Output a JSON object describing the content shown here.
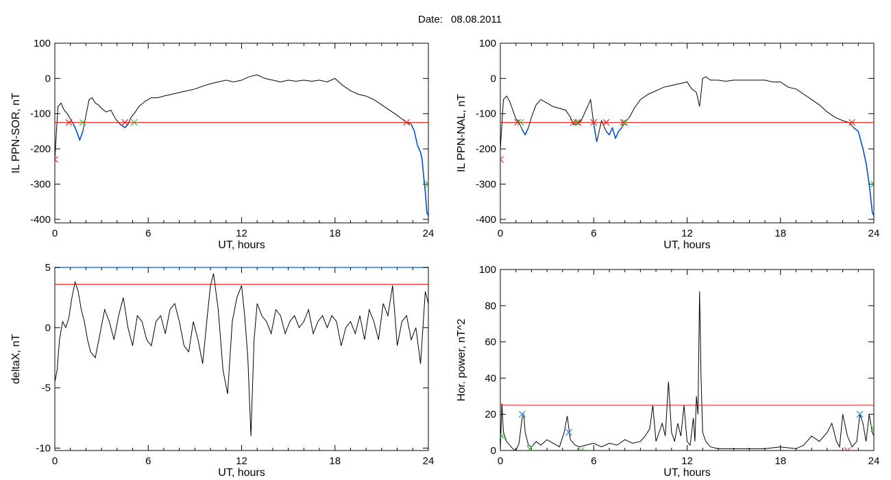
{
  "figure": {
    "date_label": "Date:",
    "date_value": "08.08.2011"
  },
  "colors": {
    "signal": "#000000",
    "threshold": "#ff0000",
    "below": "#0050d0",
    "marker_red": "#e03030",
    "marker_green": "#30c030",
    "marker_blue": "#2080e0",
    "frame": "#000000",
    "top_blue": "#1e78ff"
  },
  "chart_data": [
    {
      "id": "p1",
      "type": "line",
      "xlabel": "UT, hours",
      "ylabel": "IL PPN-SOR, nT",
      "xlim": [
        0,
        24
      ],
      "ylim": [
        -410,
        100
      ],
      "xticks": [
        0,
        6,
        12,
        18,
        24
      ],
      "yticks": [
        100,
        0,
        -100,
        -200,
        -300,
        -400
      ],
      "threshold": -125,
      "series": [
        {
          "color": "black",
          "below_color": "blue",
          "x": [
            0,
            0.2,
            0.4,
            0.6,
            0.8,
            1.0,
            1.2,
            1.4,
            1.6,
            1.8,
            2.0,
            2.2,
            2.4,
            2.6,
            2.8,
            3.0,
            3.3,
            3.6,
            3.9,
            4.2,
            4.5,
            4.7,
            4.9,
            5.1,
            5.4,
            5.8,
            6.2,
            6.6,
            7.0,
            7.5,
            8.0,
            8.5,
            9.0,
            9.5,
            10.0,
            10.5,
            11.0,
            11.5,
            12.0,
            12.5,
            13.0,
            13.5,
            14.0,
            14.5,
            15.0,
            15.5,
            16.0,
            16.5,
            17.0,
            17.5,
            18.0,
            18.5,
            19.0,
            19.5,
            20.0,
            20.5,
            21.0,
            21.5,
            22.0,
            22.3,
            22.6,
            22.9,
            23.1,
            23.3,
            23.5,
            23.6,
            23.7,
            23.8,
            23.9,
            24.0
          ],
          "y": [
            -230,
            -80,
            -70,
            -90,
            -100,
            -115,
            -130,
            -150,
            -175,
            -150,
            -105,
            -60,
            -55,
            -70,
            -75,
            -85,
            -95,
            -90,
            -115,
            -130,
            -140,
            -130,
            -110,
            -100,
            -80,
            -65,
            -55,
            -55,
            -50,
            -45,
            -40,
            -35,
            -30,
            -22,
            -15,
            -10,
            -5,
            -10,
            -5,
            5,
            10,
            0,
            -5,
            -10,
            -5,
            -8,
            -5,
            -8,
            -5,
            -10,
            0,
            -20,
            -35,
            -45,
            -50,
            -60,
            -75,
            -90,
            -105,
            -115,
            -125,
            -130,
            -150,
            -190,
            -210,
            -230,
            -280,
            -320,
            -380,
            -390
          ]
        }
      ],
      "markers": [
        {
          "x": 0.0,
          "y": -230,
          "color": "red"
        },
        {
          "x": 0.9,
          "y": -125,
          "color": "red"
        },
        {
          "x": 1.8,
          "y": -125,
          "color": "green"
        },
        {
          "x": 4.5,
          "y": -125,
          "color": "red"
        },
        {
          "x": 5.1,
          "y": -125,
          "color": "green"
        },
        {
          "x": 22.6,
          "y": -125,
          "color": "red"
        },
        {
          "x": 24.0,
          "y": -300,
          "color": "green"
        }
      ]
    },
    {
      "id": "p2",
      "type": "line",
      "xlabel": "UT, hours",
      "ylabel": "IL PPN-NAL, nT",
      "xlim": [
        0,
        24
      ],
      "ylim": [
        -410,
        100
      ],
      "xticks": [
        0,
        6,
        12,
        18,
        24
      ],
      "yticks": [
        100,
        0,
        -100,
        -200,
        -300,
        -400
      ],
      "threshold": -125,
      "series": [
        {
          "color": "black",
          "below_color": "blue",
          "x": [
            0,
            0.2,
            0.4,
            0.6,
            0.8,
            1.0,
            1.2,
            1.4,
            1.6,
            1.8,
            2.0,
            2.3,
            2.6,
            3.0,
            3.4,
            3.8,
            4.2,
            4.5,
            4.7,
            4.9,
            5.2,
            5.5,
            5.8,
            6.0,
            6.2,
            6.5,
            6.8,
            7.0,
            7.2,
            7.4,
            7.6,
            7.8,
            8.0,
            8.3,
            8.6,
            9.0,
            9.5,
            10.0,
            10.5,
            11.0,
            11.5,
            12.0,
            12.3,
            12.6,
            12.8,
            13.0,
            13.2,
            13.5,
            14.0,
            14.5,
            15.0,
            15.5,
            16.0,
            16.5,
            17.0,
            17.5,
            18.0,
            18.5,
            19.0,
            19.5,
            20.0,
            20.5,
            21.0,
            21.5,
            22.0,
            22.4,
            22.7,
            23.0,
            23.3,
            23.5,
            23.7,
            23.9,
            24.0
          ],
          "y": [
            -200,
            -60,
            -50,
            -65,
            -90,
            -115,
            -125,
            -145,
            -160,
            -140,
            -110,
            -75,
            -60,
            -70,
            -80,
            -85,
            -90,
            -110,
            -130,
            -130,
            -120,
            -90,
            -60,
            -130,
            -180,
            -120,
            -150,
            -160,
            -140,
            -170,
            -150,
            -140,
            -125,
            -110,
            -85,
            -60,
            -45,
            -35,
            -25,
            -20,
            -15,
            -10,
            -30,
            -40,
            -80,
            0,
            5,
            -5,
            -5,
            -8,
            -5,
            -5,
            -5,
            -5,
            -5,
            -10,
            -10,
            -25,
            -30,
            -45,
            -60,
            -75,
            -95,
            -110,
            -120,
            -125,
            -140,
            -150,
            -200,
            -240,
            -300,
            -380,
            -390
          ]
        }
      ],
      "markers": [
        {
          "x": 0.0,
          "y": -230,
          "color": "red"
        },
        {
          "x": 1.1,
          "y": -125,
          "color": "red"
        },
        {
          "x": 1.3,
          "y": -125,
          "color": "green"
        },
        {
          "x": 4.7,
          "y": -125,
          "color": "red"
        },
        {
          "x": 4.9,
          "y": -125,
          "color": "green"
        },
        {
          "x": 5.0,
          "y": -125,
          "color": "red"
        },
        {
          "x": 6.0,
          "y": -125,
          "color": "red"
        },
        {
          "x": 6.8,
          "y": -125,
          "color": "red"
        },
        {
          "x": 7.9,
          "y": -125,
          "color": "red"
        },
        {
          "x": 8.0,
          "y": -125,
          "color": "green"
        },
        {
          "x": 22.6,
          "y": -125,
          "color": "red"
        },
        {
          "x": 24.0,
          "y": -300,
          "color": "green"
        }
      ]
    },
    {
      "id": "p3",
      "type": "line",
      "xlabel": "UT, hours",
      "ylabel": "deltaX, nT",
      "xlim": [
        0,
        24
      ],
      "ylim": [
        -10.2,
        5.0
      ],
      "xticks": [
        0,
        6,
        12,
        18,
        24
      ],
      "yticks": [
        5,
        0,
        -5,
        -10
      ],
      "ytick_labels": [
        "5",
        "0",
        "-5",
        "-10"
      ],
      "threshold": 3.6,
      "top_line": true,
      "series": [
        {
          "color": "black",
          "x": [
            0,
            0.15,
            0.3,
            0.5,
            0.7,
            0.9,
            1.1,
            1.3,
            1.5,
            1.7,
            1.9,
            2.1,
            2.3,
            2.6,
            2.9,
            3.2,
            3.5,
            3.8,
            4.1,
            4.4,
            4.7,
            5.0,
            5.3,
            5.6,
            5.9,
            6.2,
            6.5,
            6.8,
            7.1,
            7.4,
            7.7,
            8.0,
            8.3,
            8.6,
            8.9,
            9.2,
            9.5,
            9.8,
            10.0,
            10.2,
            10.5,
            10.8,
            11.1,
            11.4,
            11.7,
            12.0,
            12.2,
            12.4,
            12.6,
            12.8,
            13.0,
            13.3,
            13.6,
            13.9,
            14.2,
            14.5,
            14.8,
            15.1,
            15.4,
            15.7,
            16.0,
            16.3,
            16.6,
            16.9,
            17.2,
            17.5,
            17.8,
            18.1,
            18.4,
            18.7,
            19.0,
            19.3,
            19.6,
            19.9,
            20.2,
            20.5,
            20.8,
            21.1,
            21.4,
            21.7,
            22.0,
            22.3,
            22.6,
            22.9,
            23.2,
            23.5,
            23.8,
            24.0
          ],
          "y": [
            -4.5,
            -3.5,
            -1.0,
            0.5,
            0.0,
            0.8,
            2.5,
            3.8,
            3.0,
            1.5,
            0.5,
            -1.0,
            -2.0,
            -2.5,
            -0.5,
            1.5,
            0.5,
            -1.0,
            1.0,
            2.5,
            0.0,
            -1.5,
            1.0,
            0.5,
            -1.0,
            -1.5,
            0.5,
            1.0,
            -0.5,
            1.5,
            2.0,
            0.5,
            -1.5,
            -2.0,
            0.5,
            -1.0,
            -3.0,
            1.0,
            3.5,
            4.5,
            1.5,
            -3.5,
            -5.5,
            0.5,
            2.5,
            3.5,
            1.0,
            -2.5,
            -9.0,
            -1.0,
            2.0,
            1.0,
            0.5,
            -0.5,
            1.5,
            1.0,
            -0.5,
            0.5,
            1.0,
            0.0,
            0.5,
            1.5,
            -0.5,
            0.5,
            1.0,
            0.0,
            1.0,
            0.5,
            -1.5,
            0.0,
            0.5,
            -0.5,
            1.0,
            -1.0,
            1.5,
            0.5,
            -1.0,
            2.0,
            1.0,
            3.5,
            -1.5,
            0.5,
            1.0,
            -1.0,
            0.0,
            -3.0,
            3.0,
            2.0
          ]
        }
      ],
      "markers": []
    },
    {
      "id": "p4",
      "type": "line",
      "xlabel": "UT, hours",
      "ylabel": "Hor. power, nT^2",
      "xlim": [
        0,
        24
      ],
      "ylim": [
        0,
        100
      ],
      "xticks": [
        0,
        6,
        12,
        18,
        24
      ],
      "yticks": [
        100,
        80,
        60,
        40,
        20,
        0
      ],
      "threshold": 25,
      "series": [
        {
          "color": "black",
          "x": [
            0,
            0.1,
            0.2,
            0.4,
            0.6,
            0.8,
            1.0,
            1.2,
            1.4,
            1.5,
            1.6,
            1.8,
            2.0,
            2.3,
            2.6,
            3.0,
            3.4,
            3.8,
            4.1,
            4.3,
            4.5,
            4.8,
            5.1,
            5.5,
            6.0,
            6.5,
            7.0,
            7.5,
            8.0,
            8.5,
            9.0,
            9.3,
            9.6,
            9.8,
            10.0,
            10.2,
            10.4,
            10.6,
            10.8,
            11.0,
            11.2,
            11.4,
            11.6,
            11.8,
            12.0,
            12.2,
            12.4,
            12.5,
            12.6,
            12.7,
            12.8,
            12.9,
            13.0,
            13.2,
            13.5,
            14.0,
            15.0,
            16.0,
            17.0,
            18.0,
            19.0,
            19.5,
            20.0,
            20.5,
            21.0,
            21.3,
            21.6,
            21.8,
            22.0,
            22.3,
            22.6,
            22.9,
            23.1,
            23.3,
            23.5,
            23.7,
            23.9,
            24.0
          ],
          "y": [
            0,
            26,
            10,
            5,
            3,
            1,
            0,
            4,
            18,
            20,
            10,
            3,
            2,
            5,
            3,
            6,
            4,
            2,
            10,
            19,
            6,
            3,
            2,
            3,
            4,
            2,
            4,
            3,
            6,
            4,
            5,
            8,
            12,
            25,
            5,
            10,
            15,
            8,
            38,
            10,
            5,
            15,
            8,
            25,
            5,
            3,
            18,
            5,
            30,
            20,
            88,
            40,
            10,
            5,
            2,
            1,
            1,
            1,
            1,
            2,
            1,
            3,
            8,
            5,
            10,
            15,
            5,
            2,
            20,
            8,
            2,
            5,
            20,
            15,
            5,
            20,
            10,
            8
          ]
        }
      ],
      "markers": [
        {
          "x": 0.1,
          "y": 8,
          "color": "green"
        },
        {
          "x": 1.4,
          "y": 20,
          "color": "blue"
        },
        {
          "x": 1.9,
          "y": 1,
          "color": "green"
        },
        {
          "x": 4.4,
          "y": 10,
          "color": "blue"
        },
        {
          "x": 5.2,
          "y": 0,
          "color": "green"
        },
        {
          "x": 22.3,
          "y": 0,
          "color": "red"
        },
        {
          "x": 23.1,
          "y": 20,
          "color": "blue"
        },
        {
          "x": 24.0,
          "y": 12,
          "color": "green"
        }
      ]
    }
  ]
}
